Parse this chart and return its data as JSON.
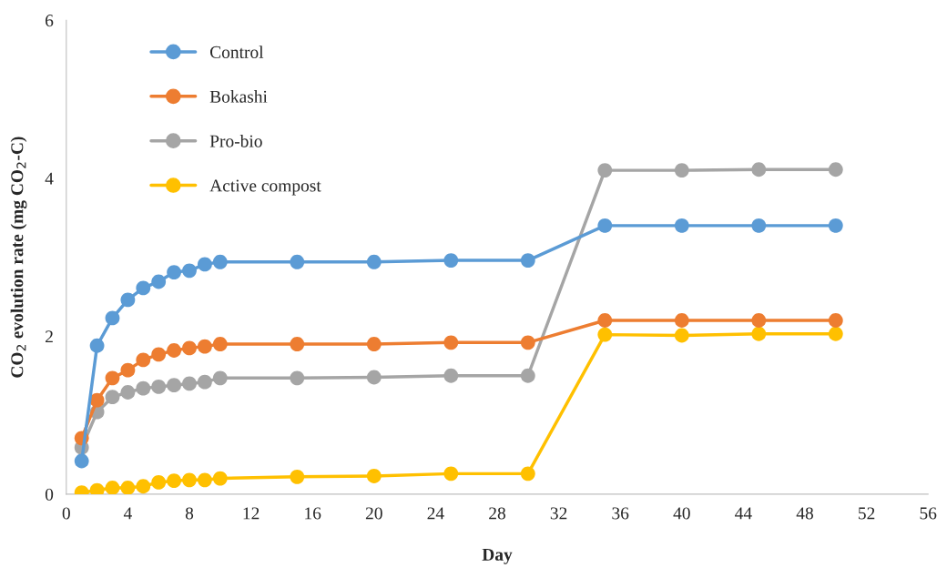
{
  "chart_data": {
    "type": "line",
    "xlabel": "Day",
    "ylabel": "CO$_{2}$ evolution rate (mg CO$_{2}$-C)",
    "x": [
      1,
      2,
      3,
      4,
      5,
      6,
      7,
      8,
      9,
      10,
      15,
      20,
      25,
      30,
      35,
      40,
      45,
      50
    ],
    "xlim": [
      0,
      56
    ],
    "xticks": [
      0,
      4,
      8,
      12,
      16,
      20,
      24,
      28,
      32,
      36,
      40,
      44,
      48,
      52,
      56
    ],
    "ylim": [
      0,
      6
    ],
    "yticks": [
      0,
      2,
      4,
      6
    ],
    "grid": false,
    "legend": "top left",
    "marker": "circle",
    "line_style": "solid",
    "series": [
      {
        "name": "Control",
        "color": "#5b9bd5",
        "values": [
          0.42,
          1.88,
          2.23,
          2.46,
          2.61,
          2.69,
          2.81,
          2.83,
          2.91,
          2.94,
          2.94,
          2.94,
          2.96,
          2.96,
          3.4,
          3.4,
          3.4,
          3.4
        ]
      },
      {
        "name": "Bokashi",
        "color": "#ed7d31",
        "values": [
          0.71,
          1.19,
          1.47,
          1.57,
          1.7,
          1.77,
          1.82,
          1.85,
          1.87,
          1.9,
          1.9,
          1.9,
          1.92,
          1.92,
          2.2,
          2.2,
          2.2,
          2.2
        ]
      },
      {
        "name": "Pro-bio",
        "color": "#a5a5a5",
        "values": [
          0.59,
          1.04,
          1.23,
          1.29,
          1.34,
          1.36,
          1.38,
          1.4,
          1.42,
          1.47,
          1.47,
          1.48,
          1.5,
          1.5,
          4.1,
          4.1,
          4.11,
          4.11
        ]
      },
      {
        "name": "Active compost",
        "color": "#ffc000",
        "values": [
          0.02,
          0.05,
          0.08,
          0.08,
          0.1,
          0.15,
          0.17,
          0.18,
          0.18,
          0.2,
          0.22,
          0.23,
          0.26,
          0.26,
          2.02,
          2.01,
          2.03,
          2.03
        ]
      }
    ]
  }
}
